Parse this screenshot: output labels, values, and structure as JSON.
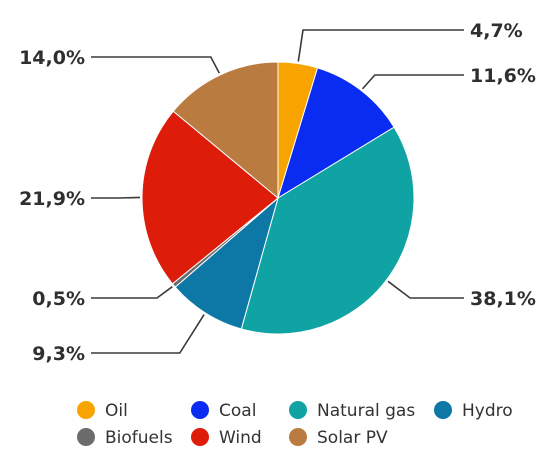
{
  "chart_data": {
    "type": "pie",
    "title": "",
    "legend_position": "bottom",
    "series": [
      {
        "name": "Oil",
        "value": 4.7,
        "label": "4,7%",
        "color": "#f7a400"
      },
      {
        "name": "Coal",
        "value": 11.6,
        "label": "11,6%",
        "color": "#0a2cf0"
      },
      {
        "name": "Natural gas",
        "value": 38.1,
        "label": "38,1%",
        "color": "#10a3a3"
      },
      {
        "name": "Hydro",
        "value": 9.3,
        "label": "9,3%",
        "color": "#0d78a6"
      },
      {
        "name": "Biofuels",
        "value": 0.5,
        "label": "0,5%",
        "color": "#6c6c6c"
      },
      {
        "name": "Wind",
        "value": 21.9,
        "label": "21,9%",
        "color": "#dd1c0a"
      },
      {
        "name": "Solar PV",
        "value": 14.0,
        "label": "14,0%",
        "color": "#ba7b40"
      }
    ]
  }
}
